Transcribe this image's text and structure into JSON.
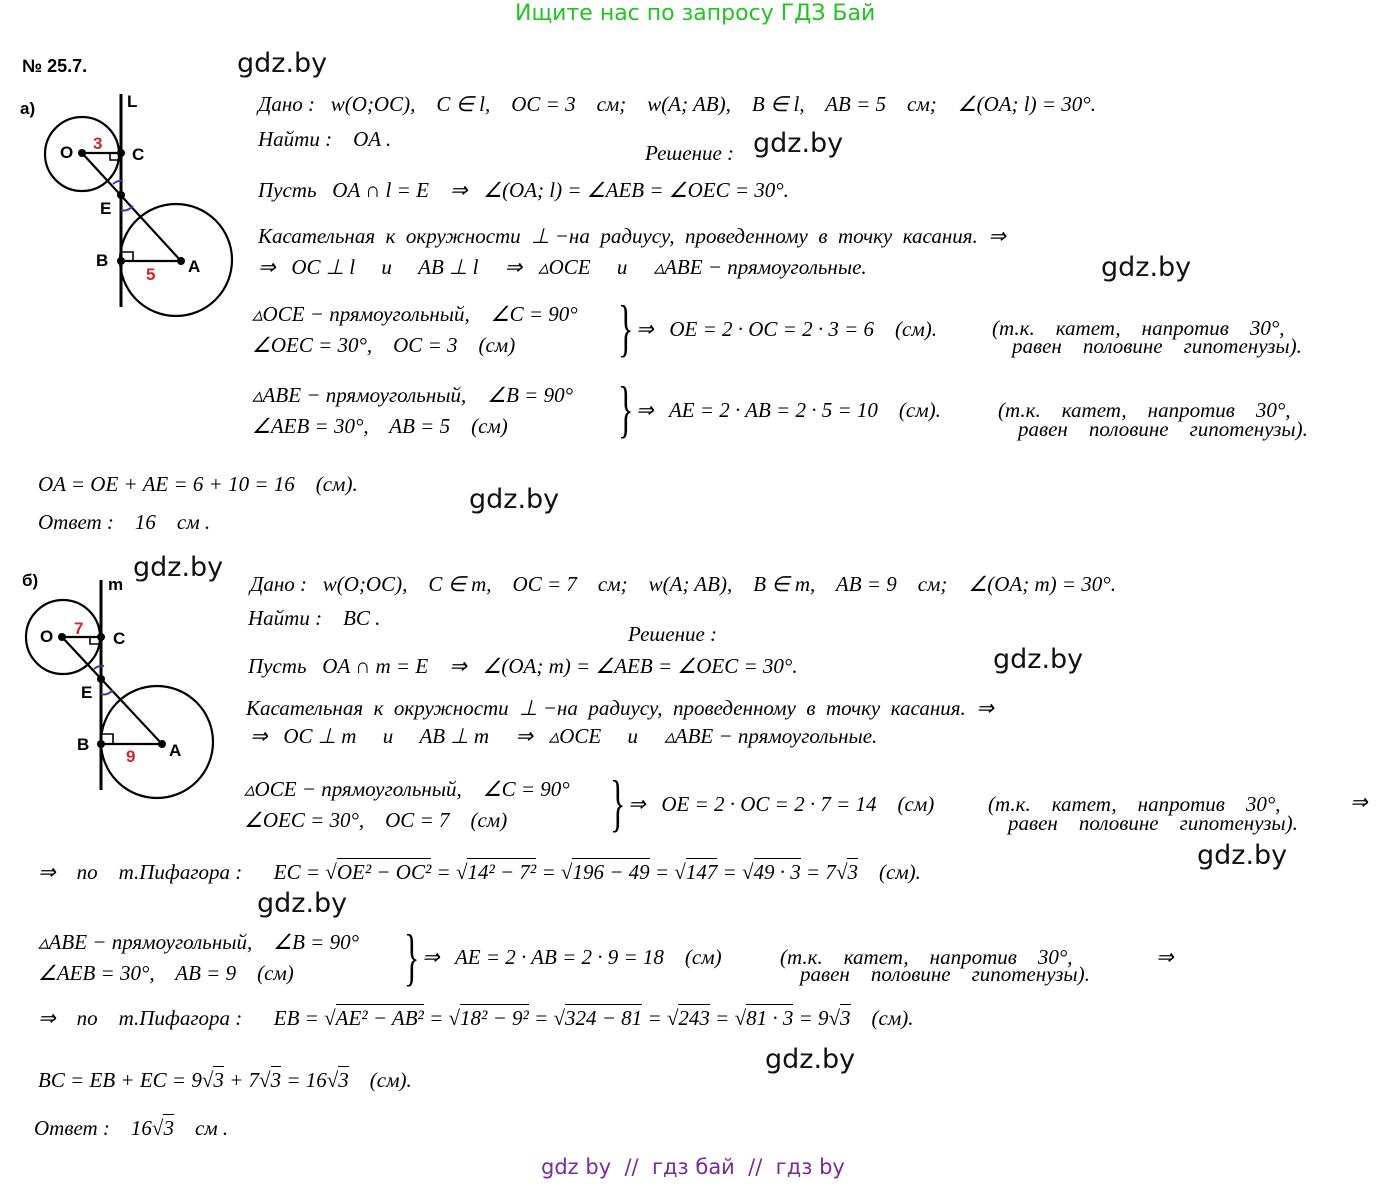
{
  "header": "Ищите нас по запросу ГДЗ Бай",
  "footer": "gdz by  //  гдз бай  //  гдз by",
  "problem_number": "№ 25.7.",
  "watermark": "gdz.by",
  "part_a": {
    "label": "а)",
    "diagram": {
      "line": "L",
      "O": "O",
      "C": "C",
      "E": "E",
      "B": "B",
      "A": "A",
      "r1": "3",
      "r2": "5"
    },
    "given": "Дано :   w(O;OC),    C ∈ l,    OC = 3    см;    w(A; AB),    B ∈ l,    AB = 5    см;    ∠(OA; l) = 30°.",
    "find": "Найти :    OA .",
    "solution": "Решение :",
    "lines": [
      "Пусть   OA ∩ l = E    ⇒   ∠(OA; l) = ∠AEB = ∠OEC = 30°.",
      "Касательная  к  окружности  ⊥ −на  радиусу,  проведенному  в  точку  касания.  ⇒",
      "⇒   OC ⊥ l     и     AB ⊥ l     ⇒   ▵OCE     и     ▵ABE − прямоугольные."
    ],
    "sys1": [
      "▵OCE − прямоугольный,    ∠C = 90°",
      "∠OEC = 30°,    OC = 3    (см)"
    ],
    "res1": "⇒   OE = 2 · OC = 2 · 3 = 6    (см).",
    "note1": [
      "(т.к.    катет,    напротив    30°,",
      "равен    половине    гипотенузы)."
    ],
    "sys2": [
      "▵ABE − прямоугольный,    ∠B = 90°",
      "∠AEB = 30°,    AB = 5    (см)"
    ],
    "res2": "⇒   AE = 2 · AB = 2 · 5 = 10    (см).",
    "note2": [
      "(т.к.    катет,    напротив    30°,",
      "равен    половине    гипотенузы)."
    ],
    "total": "OA = OE + AE = 6 + 10 = 16    (см).",
    "answer": "Ответ :    16    см ."
  },
  "part_b": {
    "label": "б)",
    "diagram": {
      "line": "m",
      "O": "O",
      "C": "C",
      "E": "E",
      "B": "B",
      "A": "A",
      "r1": "7",
      "r2": "9"
    },
    "given": "Дано :   w(O;OC),    C ∈ m,    OC = 7    см;    w(A; AB),    B ∈ m,    AB = 9    см;    ∠(OA; m) = 30°.",
    "find": "Найти :    BC .",
    "solution": "Решение :",
    "lines": [
      "Пусть   OA ∩ m = E    ⇒   ∠(OA; m) = ∠AEB = ∠OEC = 30°.",
      "Касательная  к  окружности  ⊥ −на  радиусу,  проведенному  в  точку  касания.  ⇒",
      "⇒   OC ⊥ m     и     AB ⊥ m     ⇒   ▵OCE     и     ▵ABE − прямоугольные."
    ],
    "sys1": [
      "▵OCE − прямоугольный,    ∠C = 90°",
      "∠OEC = 30°,    OC = 7    (см)"
    ],
    "res1": "⇒   OE = 2 · OC = 2 · 7 = 14    (см)",
    "note1": [
      "(т.к.    катет,    напротив    30°,",
      "равен    половине    гипотенузы)."
    ],
    "arrow": "⇒",
    "pyth1": [
      "⇒    по    т.Пифагора :      EC = ",
      {
        "sqrt": "OE² − OC²"
      },
      " = ",
      {
        "sqrt": "14² − 7²"
      },
      " = ",
      {
        "sqrt": "196 − 49"
      },
      " = ",
      {
        "sqrt": "147"
      },
      " = ",
      {
        "sqrt": "49 · 3"
      },
      " = 7",
      {
        "sqrt": "3"
      },
      "    (см)."
    ],
    "sys2": [
      "▵ABE − прямоугольный,    ∠B = 90°",
      "∠AEB = 30°,    AB = 9    (см)"
    ],
    "res2": "⇒   AE = 2 · AB = 2 · 9 = 18    (см)",
    "note2": [
      "(т.к.    катет,    напротив    30°,",
      "равен    половине    гипотенузы)."
    ],
    "pyth2": [
      "⇒    по    т.Пифагора :      EB = ",
      {
        "sqrt": "AE² − AB²"
      },
      " = ",
      {
        "sqrt": "18² − 9²"
      },
      " = ",
      {
        "sqrt": "324 − 81"
      },
      " = ",
      {
        "sqrt": "243"
      },
      " = ",
      {
        "sqrt": "81 · 3"
      },
      " = 9",
      {
        "sqrt": "3"
      },
      "    (см)."
    ],
    "total": [
      "BC = EB + EC = 9",
      {
        "sqrt": "3"
      },
      " + 7",
      {
        "sqrt": "3"
      },
      " = 16",
      {
        "sqrt": "3"
      },
      "    (см)."
    ],
    "answer": [
      "Ответ :    16",
      {
        "sqrt": "3"
      },
      "    см ."
    ]
  }
}
